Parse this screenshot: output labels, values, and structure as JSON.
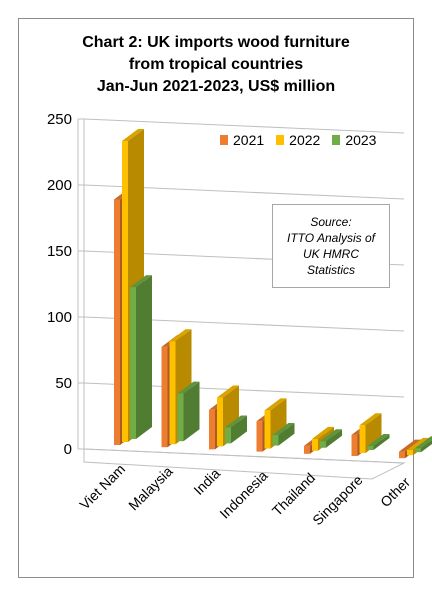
{
  "title_lines": [
    "Chart 2: UK imports wood furniture",
    "from tropical countries",
    "Jan-Jun 2021-2023, US$ million"
  ],
  "source_lines": [
    "Source:",
    "ITTO Analysis of",
    "UK HMRC",
    "Statistics"
  ],
  "colors": {
    "2021": "#ed7d31",
    "2022": "#ffc000",
    "2023": "#70ad47"
  },
  "chart_data": {
    "type": "bar",
    "title": "Chart 2: UK imports wood furniture from tropical countries Jan-Jun 2021-2023, US$ million",
    "categories": [
      "Viet Nam",
      "Malaysia",
      "India",
      "Indonesia",
      "Thailand",
      "Singapore",
      "Other"
    ],
    "series": [
      {
        "name": "2021",
        "values": [
          186,
          76,
          30,
          23,
          6,
          16,
          5
        ]
      },
      {
        "name": "2022",
        "values": [
          228,
          78,
          37,
          29,
          9,
          21,
          4
        ]
      },
      {
        "name": "2023",
        "values": [
          115,
          36,
          12,
          8,
          5,
          3,
          3
        ]
      }
    ],
    "ylim": [
      0,
      250
    ],
    "yticks": [
      0,
      50,
      100,
      150,
      200,
      250
    ],
    "grid": true,
    "legend": "top-right",
    "xlabel": "",
    "ylabel": ""
  }
}
